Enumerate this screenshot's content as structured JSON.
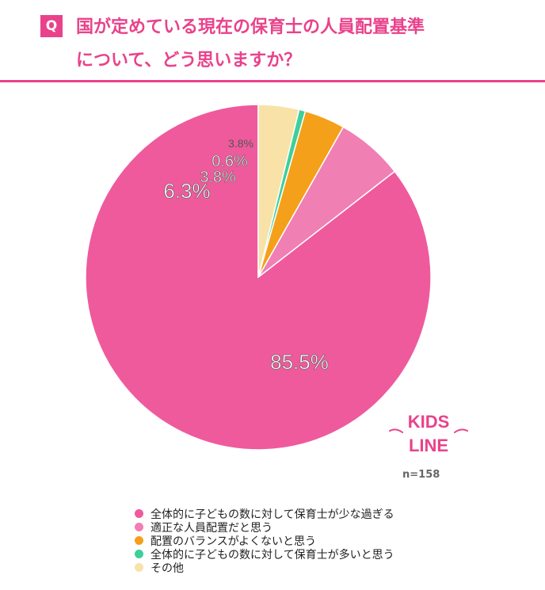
{
  "header": {
    "badge": "Q",
    "title": "国が定めている現在の保育士の人員配置基準\nについて、どう思いますか？"
  },
  "chart_data": {
    "type": "pie",
    "categories": [
      "全体的に子どもの数に対して保育士が少な過ぎる",
      "適正な人員配置だと思う",
      "配置のバランスがよくないと思う",
      "全体的に子どもの数に対して保育士が多いと思う",
      "その他"
    ],
    "values": [
      85.5,
      6.3,
      3.8,
      0.6,
      3.8
    ],
    "labels": [
      "85.5%",
      "6.3%",
      "3.8%",
      "0.6%",
      "3.8%"
    ],
    "colors": [
      "#ef5a9d",
      "#f07fb3",
      "#f5a01a",
      "#3ecf9a",
      "#f8e2a8"
    ],
    "start": "12 o'clock",
    "direction": "counterclockwise",
    "legend_position": "bottom"
  },
  "sample": "n=158",
  "logo": {
    "line1": "KIDS",
    "line2": "LINE"
  }
}
